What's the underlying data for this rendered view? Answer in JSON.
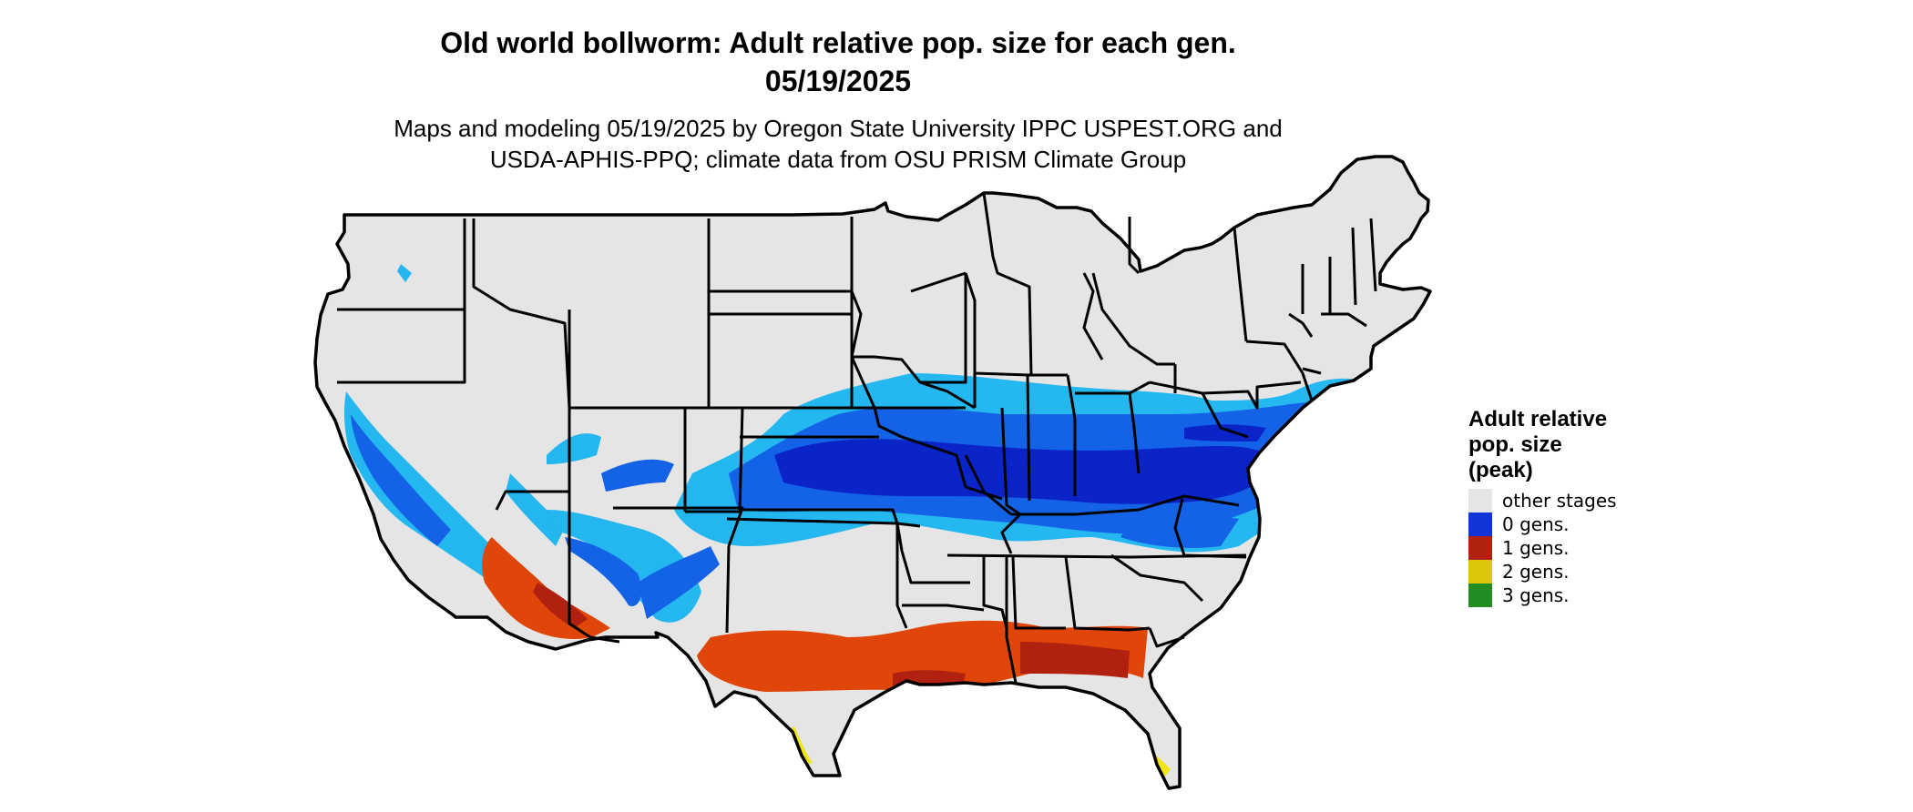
{
  "title": {
    "line1": "Old world bollworm: Adult relative pop. size for each gen.",
    "line2": "05/19/2025"
  },
  "subtitle": {
    "line1": "Maps and modeling 05/19/2025 by Oregon State University IPPC USPEST.ORG and",
    "line2": "USDA-APHIS-PPQ; climate data from OSU PRISM Climate Group"
  },
  "legend": {
    "title_line1": "Adult relative",
    "title_line2": "pop. size",
    "title_line3": "(peak)",
    "items": [
      {
        "label": "other stages",
        "color": "#e5e5e5"
      },
      {
        "label": "0 gens.",
        "color": "#1034d6"
      },
      {
        "label": "1 gens.",
        "color": "#b0210f"
      },
      {
        "label": "2 gens.",
        "color": "#dcc60a"
      },
      {
        "label": "3 gens.",
        "color": "#238c23"
      }
    ]
  },
  "map_colors": {
    "land": "#e5e5e5",
    "blue_light": "#19b4f0",
    "blue_mid": "#1463e6",
    "blue_dark": "#0a24c8",
    "red_orange": "#e0460a",
    "red_dark": "#b0210f",
    "yellow": "#f0e614",
    "border": "#000000"
  }
}
